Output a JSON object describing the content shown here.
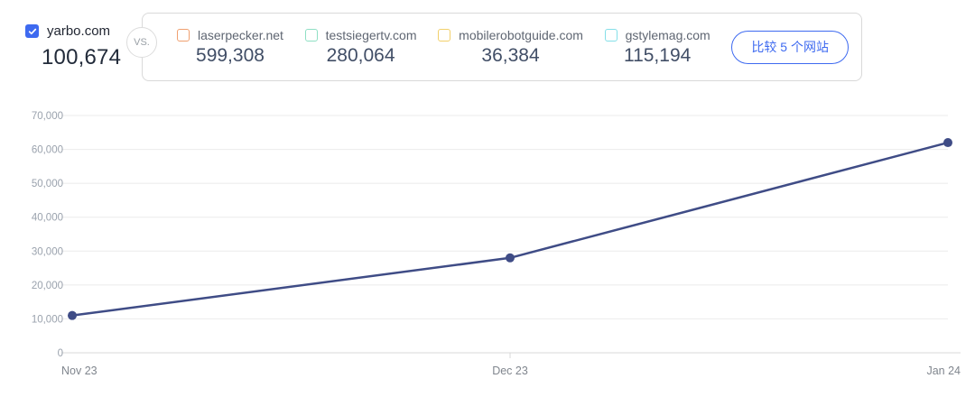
{
  "header": {
    "primary_site": {
      "label": "yarbo.com",
      "value": "100,674",
      "checkbox_color": "#3e6af0"
    },
    "vs_label": "VS.",
    "competitors": [
      {
        "label": "laserpecker.net",
        "value": "599,308",
        "color": "#f0a070"
      },
      {
        "label": "testsiegertv.com",
        "value": "280,064",
        "color": "#8fdfc4"
      },
      {
        "label": "mobilerobotguide.com",
        "value": "36,384",
        "color": "#f2d06b"
      },
      {
        "label": "gstylemag.com",
        "value": "115,194",
        "color": "#84dfe8"
      }
    ],
    "compare_button_label": "比较 5 个网站",
    "accent_color": "#3e6af0"
  },
  "chart_data": {
    "type": "line",
    "title": "",
    "x": [
      "Nov 23",
      "Dec 23",
      "Jan 24"
    ],
    "series": [
      {
        "name": "yarbo.com",
        "values": [
          11000,
          28000,
          62000
        ],
        "color": "#3f4c86"
      }
    ],
    "ylim": [
      0,
      70000
    ],
    "ytick_interval": 10000,
    "ytick_labels": [
      "0",
      "10,000",
      "20,000",
      "30,000",
      "40,000",
      "50,000",
      "60,000",
      "70,000"
    ],
    "grid": true,
    "legend_position": "none",
    "grid_color": "#ebebeb",
    "axis_color": "#d9d9d9"
  }
}
